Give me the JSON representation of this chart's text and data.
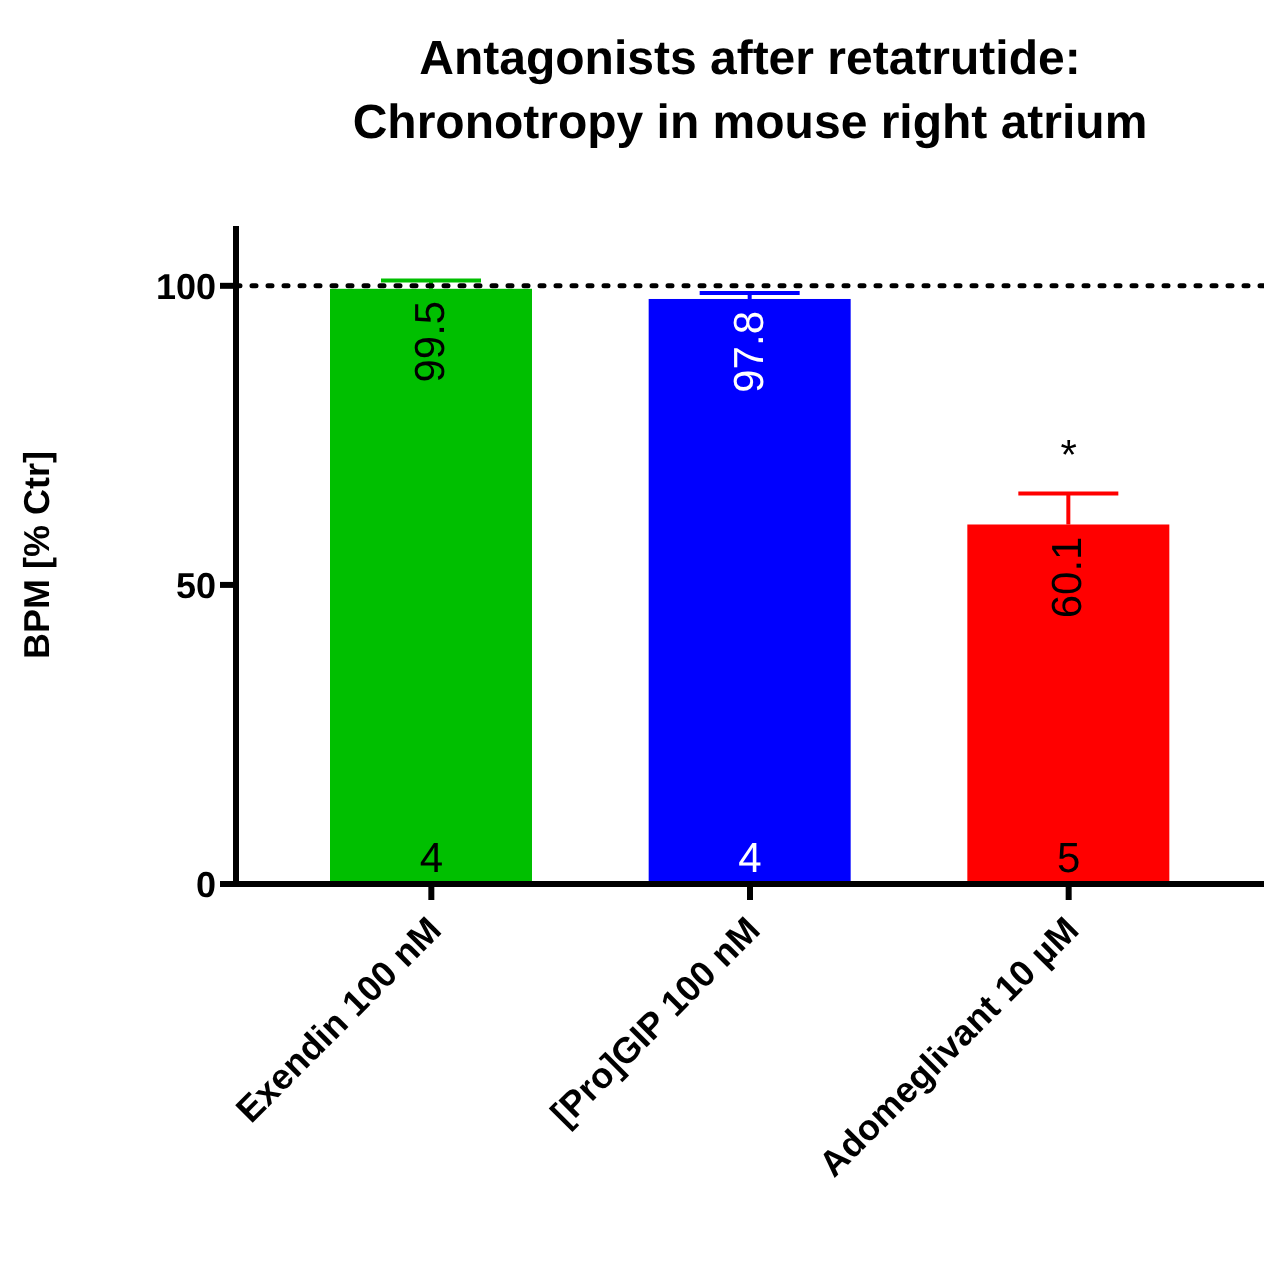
{
  "chart_data": {
    "type": "bar",
    "title": "Antagonists after retatrutide:\nChronotropy in mouse right atrium",
    "ylabel": "BPM [% Ctr]",
    "categories": [
      "Exendin 100 nM",
      "[Pro]GIP 100 nM",
      "Adomeglivant 10 µM"
    ],
    "values": [
      99.5,
      97.8,
      60.1
    ],
    "colors": [
      "#00bf00",
      "#0000ff",
      "#ff0000"
    ],
    "errors": [
      [
        99.5,
        100.9
      ],
      [
        97.8,
        98.8
      ],
      [
        60.1,
        65.3
      ]
    ],
    "data_labels": true,
    "annotations": [
      {
        "text": "4",
        "x": "Exendin 100 nM",
        "y": 0
      },
      {
        "text": "4",
        "x": "[Pro]GIP 100 nM",
        "y": 0
      },
      {
        "text": "5",
        "x": "Adomeglivant 10 µM",
        "y": 0
      },
      {
        "text": "*",
        "x": "Adomeglivant 10 µM",
        "y": 65.3
      }
    ],
    "ref_lines": [
      {
        "axis": "y",
        "value": 100,
        "line_style": "dotted",
        "color": "#000000"
      }
    ],
    "ylim": [
      0,
      110
    ],
    "yticks": [
      0,
      50,
      100
    ],
    "grid": false,
    "legend": false
  }
}
